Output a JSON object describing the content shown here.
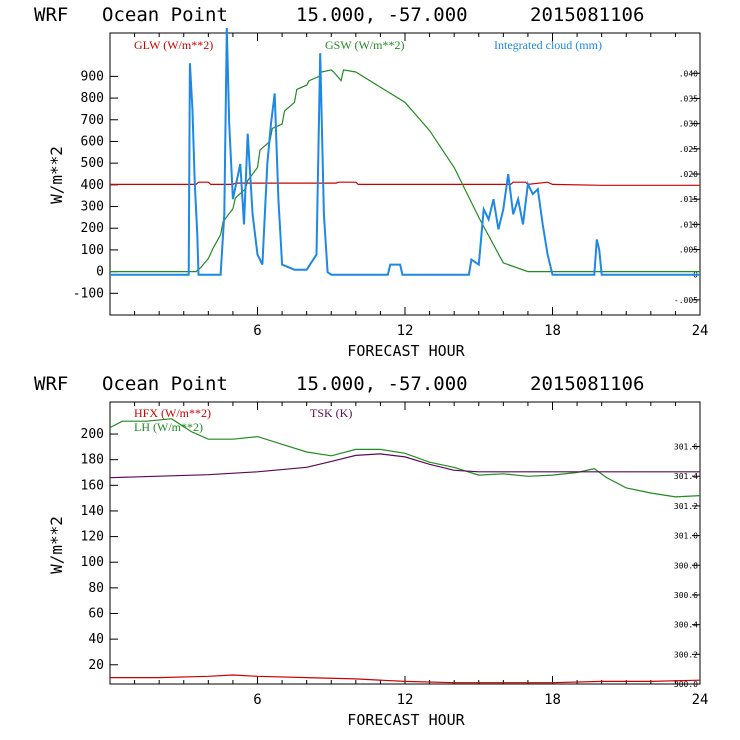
{
  "chart_data": [
    {
      "type": "line",
      "header": {
        "model": "WRF",
        "location": "Ocean Point",
        "coords": "15.000, -57.000",
        "run": "2015081106"
      },
      "xlabel": "FORECAST HOUR",
      "ylabel": "W/m**2",
      "xlim": [
        0,
        24
      ],
      "ylim": [
        -200,
        1100
      ],
      "x_ticks": [
        "6",
        "12",
        "18",
        "24"
      ],
      "y_ticks": [
        "-100",
        "0",
        "100",
        "200",
        "300",
        "400",
        "500",
        "600",
        "700",
        "800",
        "900"
      ],
      "right_axis": {
        "ylim": [
          -0.008,
          0.048
        ],
        "ticks": [
          "-.005",
          "0",
          ".005",
          ".010",
          ".015",
          ".020",
          ".025",
          ".030",
          ".035",
          ".040"
        ]
      },
      "series": [
        {
          "name": "GLW (W/m**2)",
          "color": "#cc0000",
          "axis": "left",
          "x": [
            0,
            2,
            2.5,
            3.5,
            3.6,
            4.0,
            4.1,
            5.0,
            5.1,
            9.2,
            9.3,
            10.0,
            10.1,
            15.5,
            15.6,
            16.3,
            16.4,
            16.9,
            17.0,
            17.8,
            18.0,
            20.0,
            24
          ],
          "values": [
            402,
            402,
            402,
            402,
            412,
            412,
            402,
            402,
            408,
            408,
            412,
            412,
            402,
            402,
            402,
            402,
            412,
            412,
            402,
            412,
            402,
            398,
            398
          ]
        },
        {
          "name": "GSW (W/m**2)",
          "color": "#228b22",
          "axis": "left",
          "x": [
            0,
            3.5,
            3.7,
            4.0,
            4.2,
            4.5,
            4.6,
            5.0,
            5.1,
            5.5,
            5.6,
            6.0,
            6.1,
            6.5,
            6.6,
            7.0,
            7.1,
            7.5,
            7.6,
            8.0,
            8.1,
            8.5,
            8.6,
            9.0,
            9.1,
            9.4,
            9.5,
            10,
            11,
            12,
            13,
            14,
            15,
            16,
            17,
            18,
            24
          ],
          "values": [
            0,
            0,
            20,
            60,
            110,
            170,
            230,
            290,
            340,
            380,
            420,
            480,
            560,
            600,
            660,
            680,
            740,
            780,
            840,
            860,
            880,
            900,
            920,
            930,
            920,
            880,
            930,
            920,
            850,
            780,
            650,
            480,
            250,
            40,
            0,
            0,
            0
          ]
        },
        {
          "name": "Integrated cloud (mm)",
          "color": "#1e88e5",
          "axis": "right",
          "x": [
            0,
            3.2,
            3.25,
            3.35,
            3.45,
            3.55,
            3.6,
            4.0,
            4.5,
            4.65,
            4.75,
            4.85,
            5.0,
            5.3,
            5.45,
            5.6,
            5.8,
            6.0,
            6.2,
            6.4,
            6.55,
            6.7,
            6.85,
            7.0,
            7.5,
            8.0,
            8.4,
            8.55,
            8.7,
            8.85,
            9.0,
            11.3,
            11.4,
            11.6,
            11.8,
            11.9,
            14.6,
            14.7,
            15.0,
            15.2,
            15.4,
            15.6,
            15.8,
            16.0,
            16.2,
            16.4,
            16.6,
            16.8,
            17.0,
            17.2,
            17.4,
            17.6,
            17.8,
            18.0,
            19.7,
            19.8,
            19.9,
            20.0,
            24
          ],
          "values": [
            0,
            0,
            0.042,
            0.033,
            0.018,
            0.008,
            0,
            0,
            0,
            0.012,
            0.049,
            0.03,
            0.015,
            0.022,
            0.01,
            0.028,
            0.012,
            0.004,
            0.002,
            0.022,
            0.03,
            0.036,
            0.015,
            0.002,
            0.001,
            0.001,
            0.004,
            0.044,
            0.012,
            0.0005,
            0,
            0,
            0.002,
            0.002,
            0.002,
            0,
            0,
            0.003,
            0.002,
            0.013,
            0.011,
            0.015,
            0.009,
            0.013,
            0.02,
            0.012,
            0.015,
            0.01,
            0.018,
            0.016,
            0.017,
            0.01,
            0.004,
            0,
            0,
            0.007,
            0.005,
            0,
            0
          ]
        }
      ]
    },
    {
      "type": "line",
      "header": {
        "model": "WRF",
        "location": "Ocean Point",
        "coords": "15.000, -57.000",
        "run": "2015081106"
      },
      "xlabel": "FORECAST HOUR",
      "ylabel": "W/m**2",
      "xlim": [
        0,
        24
      ],
      "ylim": [
        5,
        225
      ],
      "x_ticks": [
        "6",
        "12",
        "18",
        "24"
      ],
      "y_ticks": [
        "20",
        "40",
        "60",
        "80",
        "100",
        "120",
        "140",
        "160",
        "180",
        "200"
      ],
      "right_axis": {
        "ylim": [
          300.0,
          301.9
        ],
        "ticks": [
          "300.0",
          "300.2",
          "300.4",
          "300.6",
          "300.8",
          "301.0",
          "301.2",
          "301.4",
          "301.6"
        ]
      },
      "series": [
        {
          "name": "HFX (W/m**2)",
          "color": "#cc0000",
          "axis": "left",
          "x": [
            0,
            2,
            4,
            5,
            6,
            8,
            10,
            12,
            14,
            16,
            18,
            20,
            22,
            24
          ],
          "values": [
            10,
            10,
            11,
            12,
            11,
            10,
            9,
            7,
            6,
            6,
            6,
            7,
            7,
            8
          ]
        },
        {
          "name": "LH (W/m**2)",
          "color": "#228b22",
          "axis": "left",
          "x": [
            0,
            0.5,
            1.5,
            2.5,
            3.3,
            4,
            5,
            6,
            7,
            8,
            9,
            10,
            11,
            12,
            13,
            14,
            15,
            16,
            17,
            18,
            19,
            19.7,
            20.2,
            21,
            22,
            23,
            24
          ],
          "values": [
            205,
            210,
            210,
            212,
            202,
            196,
            196,
            198,
            192,
            186,
            183,
            188,
            188,
            185,
            178,
            174,
            168,
            169,
            167,
            168,
            170,
            173,
            166,
            158,
            154,
            151,
            152
          ]
        },
        {
          "name": "TSK (K)",
          "color": "#5a0a5a",
          "axis": "right",
          "x": [
            0,
            2,
            4,
            6,
            8,
            9,
            10,
            11,
            12,
            13,
            14,
            15,
            18,
            21,
            24
          ],
          "values": [
            301.39,
            301.4,
            301.41,
            301.43,
            301.46,
            301.5,
            301.54,
            301.55,
            301.53,
            301.48,
            301.44,
            301.43,
            301.43,
            301.43,
            301.43
          ]
        }
      ]
    }
  ]
}
